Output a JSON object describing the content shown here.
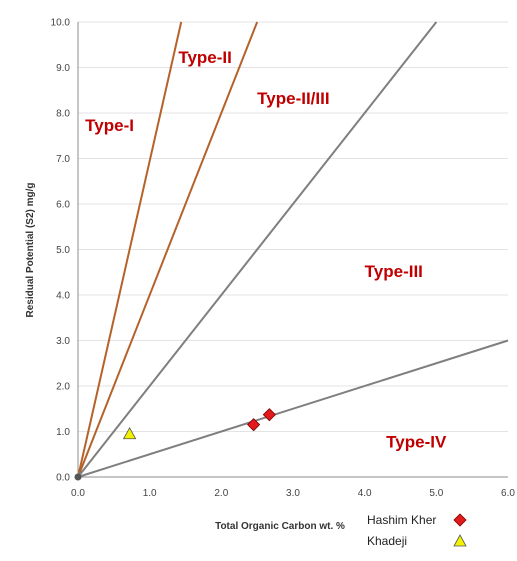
{
  "chart_data": {
    "type": "scatter",
    "xlabel": "Total Organic Carbon wt. %",
    "ylabel": "Residual Potential (S2) mg/g",
    "xlim": [
      0,
      6
    ],
    "ylim": [
      0,
      10
    ],
    "x_ticks": [
      "0.0",
      "1.0",
      "2.0",
      "3.0",
      "4.0",
      "5.0",
      "6.0"
    ],
    "y_ticks": [
      "0.0",
      "1.0",
      "2.0",
      "3.0",
      "4.0",
      "5.0",
      "6.0",
      "7.0",
      "8.0",
      "9.0",
      "10.0"
    ],
    "grid": true,
    "boundary_lines": [
      {
        "x": [
          0,
          1.44
        ],
        "y": [
          0,
          10
        ],
        "color": "#b5622a"
      },
      {
        "x": [
          0,
          2.5
        ],
        "y": [
          0,
          10
        ],
        "color": "#b5622a"
      },
      {
        "x": [
          0,
          5.0
        ],
        "y": [
          0,
          10
        ],
        "color": "#7f7f7f"
      },
      {
        "x": [
          0,
          6.0
        ],
        "y": [
          0,
          3
        ],
        "color": "#7f7f7f"
      }
    ],
    "regions": [
      {
        "label": "Type-I",
        "x": 0.1,
        "y": 7.6
      },
      {
        "label": "Type-II",
        "x": 1.4,
        "y": 9.1
      },
      {
        "label": "Type-II/III",
        "x": 2.5,
        "y": 8.2
      },
      {
        "label": "Type-III",
        "x": 4.0,
        "y": 4.4
      },
      {
        "label": "Type-IV",
        "x": 4.3,
        "y": 0.65
      }
    ],
    "series": [
      {
        "name": "Hashim Kher",
        "marker": "diamond",
        "color": "#e31a1c",
        "points": [
          {
            "x": 2.45,
            "y": 1.15
          },
          {
            "x": 2.67,
            "y": 1.37
          }
        ]
      },
      {
        "name": "Khadeji",
        "marker": "triangle",
        "color": "#f2f200",
        "points": [
          {
            "x": 0.72,
            "y": 0.95
          }
        ]
      }
    ],
    "legend_position": "bottom-right"
  }
}
